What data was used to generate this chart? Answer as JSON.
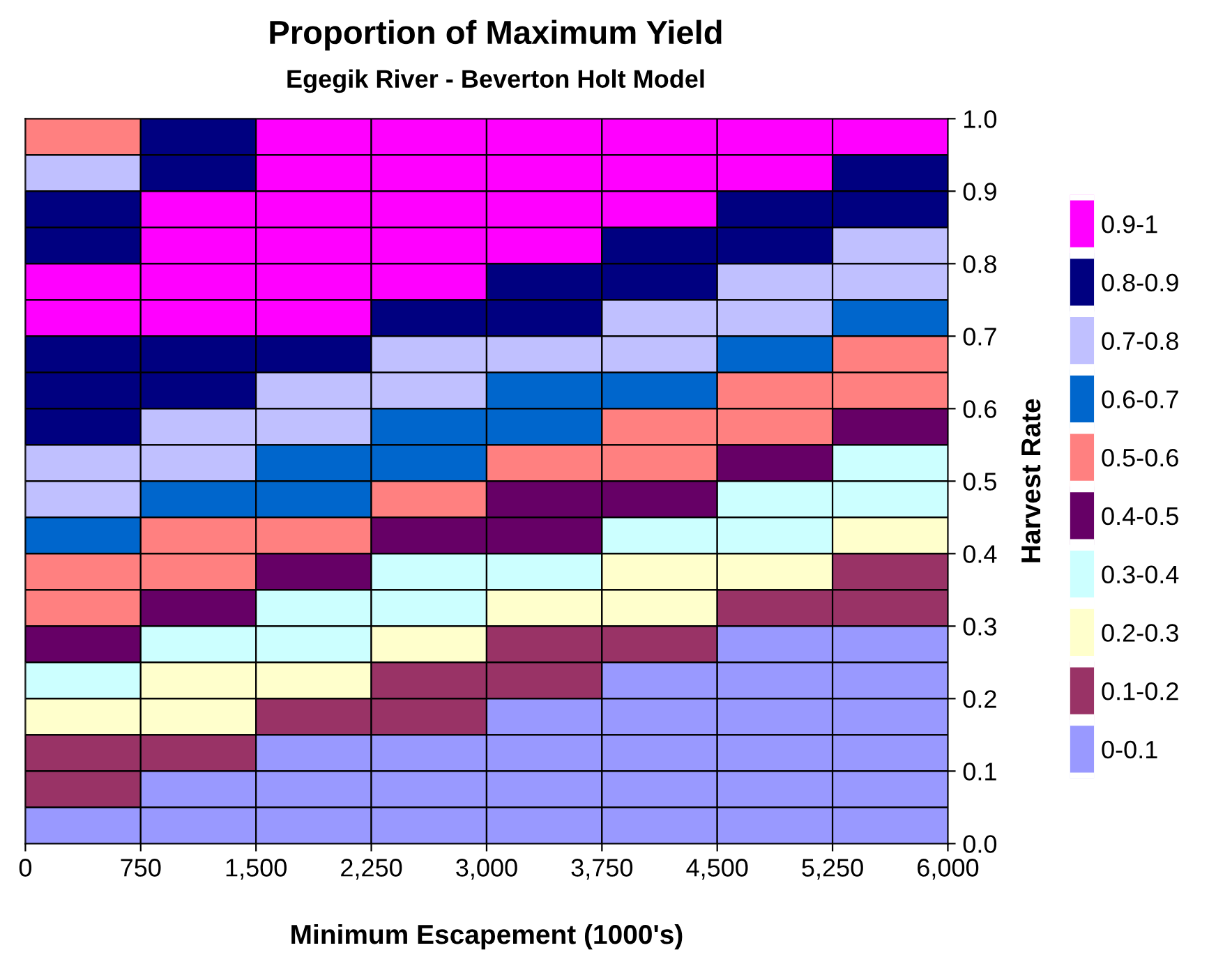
{
  "chart_data": {
    "type": "heatmap",
    "title": "Proportion of Maximum Yield",
    "subtitle": "Egegik River - Beverton Holt Model",
    "xlabel": "Minimum Escapement (1000's)",
    "ylabel": "Harvest Rate",
    "x": [
      375,
      1125,
      1875,
      2625,
      3375,
      4125,
      4875,
      5625
    ],
    "y": [
      0.975,
      0.925,
      0.875,
      0.825,
      0.775,
      0.725,
      0.675,
      0.625,
      0.575,
      0.525,
      0.475,
      0.425,
      0.375,
      0.325,
      0.275,
      0.225,
      0.175,
      0.125,
      0.075,
      0.025
    ],
    "cells": [
      [
        0.55,
        0.85,
        0.95,
        0.95,
        0.95,
        0.95,
        0.95,
        0.95
      ],
      [
        0.75,
        0.85,
        0.95,
        0.95,
        0.95,
        0.95,
        0.95,
        0.85
      ],
      [
        0.85,
        0.95,
        0.95,
        0.95,
        0.95,
        0.95,
        0.85,
        0.85
      ],
      [
        0.85,
        0.95,
        0.95,
        0.95,
        0.95,
        0.85,
        0.85,
        0.75
      ],
      [
        0.95,
        0.95,
        0.95,
        0.95,
        0.85,
        0.85,
        0.75,
        0.75
      ],
      [
        0.95,
        0.95,
        0.95,
        0.85,
        0.85,
        0.75,
        0.75,
        0.65
      ],
      [
        0.85,
        0.85,
        0.85,
        0.75,
        0.75,
        0.75,
        0.65,
        0.55
      ],
      [
        0.85,
        0.85,
        0.75,
        0.75,
        0.65,
        0.65,
        0.55,
        0.55
      ],
      [
        0.85,
        0.75,
        0.75,
        0.65,
        0.65,
        0.55,
        0.55,
        0.45
      ],
      [
        0.75,
        0.75,
        0.65,
        0.65,
        0.55,
        0.55,
        0.45,
        0.35
      ],
      [
        0.75,
        0.65,
        0.65,
        0.55,
        0.45,
        0.45,
        0.35,
        0.35
      ],
      [
        0.65,
        0.55,
        0.55,
        0.45,
        0.45,
        0.35,
        0.35,
        0.25
      ],
      [
        0.55,
        0.55,
        0.45,
        0.35,
        0.35,
        0.25,
        0.25,
        0.15
      ],
      [
        0.55,
        0.45,
        0.35,
        0.35,
        0.25,
        0.25,
        0.15,
        0.15
      ],
      [
        0.45,
        0.35,
        0.35,
        0.25,
        0.15,
        0.15,
        0.05,
        0.05
      ],
      [
        0.35,
        0.25,
        0.25,
        0.15,
        0.15,
        0.05,
        0.05,
        0.05
      ],
      [
        0.25,
        0.25,
        0.15,
        0.15,
        0.05,
        0.05,
        0.05,
        0.05
      ],
      [
        0.15,
        0.15,
        0.05,
        0.05,
        0.05,
        0.05,
        0.05,
        0.05
      ],
      [
        0.15,
        0.05,
        0.05,
        0.05,
        0.05,
        0.05,
        0.05,
        0.05
      ],
      [
        0.05,
        0.05,
        0.05,
        0.05,
        0.05,
        0.05,
        0.05,
        0.05
      ]
    ],
    "clim": [
      0,
      1
    ],
    "cticks": [
      {
        "value": 0.95,
        "label": "0.9-1"
      },
      {
        "value": 0.85,
        "label": "0.8-0.9"
      },
      {
        "value": 0.75,
        "label": "0.7-0.8"
      },
      {
        "value": 0.65,
        "label": "0.6-0.7"
      },
      {
        "value": 0.55,
        "label": "0.5-0.6"
      },
      {
        "value": 0.45,
        "label": "0.4-0.5"
      },
      {
        "value": 0.35,
        "label": "0.3-0.4"
      },
      {
        "value": 0.25,
        "label": "0.2-0.3"
      },
      {
        "value": 0.15,
        "label": "0.1-0.2"
      },
      {
        "value": 0.05,
        "label": "0-0.1"
      }
    ],
    "colors": [
      "#ff00ff",
      "#000080",
      "#c0c0ff",
      "#0066cc",
      "#ff8080",
      "#660066",
      "#ccffff",
      "#ffffcc",
      "#993366",
      "#9999ff"
    ],
    "xlim": [
      0,
      6000
    ],
    "xticks": [
      0,
      {
        "value": 750,
        "label": "750"
      },
      {
        "value": 1500,
        "label": "1,500"
      },
      {
        "value": 2250,
        "label": "2,250"
      },
      {
        "value": 3000,
        "label": "3,000"
      },
      {
        "value": 3750,
        "label": "3,750"
      },
      {
        "value": 4500,
        "label": "4,500"
      },
      {
        "value": 5250,
        "label": "5,250"
      },
      {
        "value": 6000,
        "label": "6,000"
      }
    ],
    "ylim": [
      0.0,
      1.0
    ],
    "yticks": [
      {
        "value": 0,
        "label": "0.0"
      },
      0.1,
      0.2,
      0.3,
      0.4,
      0.5,
      0.6,
      0.7,
      0.8,
      0.9,
      {
        "value": 1,
        "label": "1.0"
      }
    ]
  }
}
